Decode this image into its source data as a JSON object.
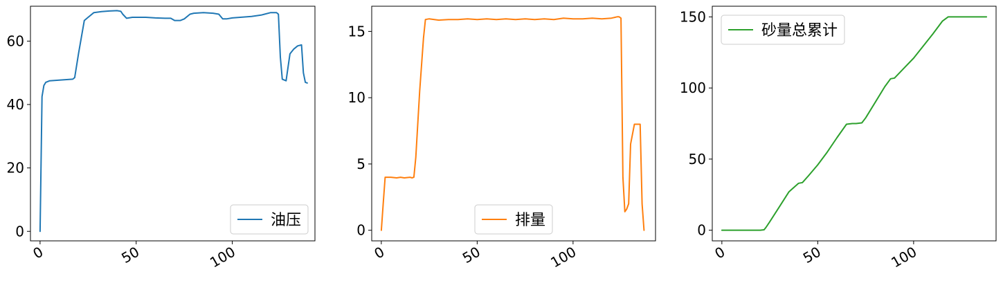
{
  "chart_data": [
    {
      "type": "line",
      "xlim": [
        -5,
        143
      ],
      "ylim": [
        -3,
        71
      ],
      "xticks": [
        0,
        50,
        100
      ],
      "yticks": [
        0,
        20,
        40,
        60
      ],
      "legend": "lower-right",
      "series": [
        {
          "name": "油压",
          "color": "#1f77b4",
          "x": [
            0,
            1,
            2,
            3,
            5,
            10,
            17,
            18,
            20,
            23,
            25,
            28,
            32,
            36,
            40,
            42,
            43,
            45,
            48,
            55,
            60,
            65,
            68,
            70,
            73,
            75,
            78,
            80,
            85,
            90,
            93,
            95,
            97,
            100,
            110,
            115,
            120,
            123,
            124,
            125,
            126,
            128,
            130,
            132,
            134,
            136,
            137,
            138,
            139
          ],
          "y": [
            0,
            42.5,
            46,
            47,
            47.5,
            47.7,
            48,
            48.5,
            56,
            66.5,
            67.5,
            69,
            69.3,
            69.5,
            69.6,
            69.4,
            68.5,
            67.2,
            67.5,
            67.5,
            67.3,
            67.2,
            67.2,
            66.5,
            66.5,
            67,
            68.5,
            68.8,
            69,
            68.8,
            68.5,
            67,
            67,
            67.3,
            67.8,
            68.2,
            69,
            69,
            68.5,
            55,
            48,
            47.5,
            56,
            57.5,
            58.5,
            58.8,
            50,
            47,
            46.8
          ]
        }
      ]
    },
    {
      "type": "line",
      "xlim": [
        -5,
        143
      ],
      "ylim": [
        -0.8,
        16.9
      ],
      "xticks": [
        0,
        50,
        100
      ],
      "yticks": [
        0,
        5,
        10,
        15
      ],
      "legend": "lower-center",
      "series": [
        {
          "name": "排量",
          "color": "#ff7f0e",
          "x": [
            0,
            1,
            2,
            5,
            8,
            10,
            12,
            15,
            16,
            17,
            18,
            20,
            22,
            23,
            25,
            30,
            35,
            40,
            45,
            50,
            55,
            60,
            65,
            70,
            75,
            80,
            85,
            90,
            95,
            100,
            105,
            110,
            115,
            120,
            123,
            124,
            125,
            126,
            127,
            128,
            129,
            130,
            132,
            134,
            135,
            136,
            137
          ],
          "y": [
            0,
            2,
            4,
            4,
            3.95,
            4,
            3.95,
            4,
            3.95,
            4,
            5.5,
            10.5,
            14.5,
            15.9,
            15.95,
            15.85,
            15.9,
            15.9,
            15.95,
            15.9,
            15.95,
            15.9,
            15.95,
            15.9,
            15.95,
            15.9,
            15.95,
            15.9,
            16,
            15.95,
            15.95,
            16,
            15.95,
            16,
            16.1,
            16.1,
            16,
            4,
            1.4,
            1.6,
            2,
            6.5,
            8,
            8,
            8,
            2,
            0
          ]
        }
      ]
    },
    {
      "type": "line",
      "xlim": [
        -5,
        143
      ],
      "ylim": [
        -7.5,
        157.5
      ],
      "xticks": [
        0,
        50,
        100
      ],
      "yticks": [
        0,
        50,
        100,
        150
      ],
      "legend": "upper-left",
      "series": [
        {
          "name": "砂量总累计",
          "color": "#2ca02c",
          "x": [
            0,
            10,
            20,
            22,
            23,
            25,
            30,
            35,
            40,
            42,
            45,
            50,
            55,
            60,
            65,
            68,
            70,
            73,
            75,
            80,
            85,
            88,
            90,
            95,
            100,
            110,
            115,
            118,
            119,
            120,
            130,
            138
          ],
          "y": [
            0,
            0,
            0,
            0.3,
            2,
            6,
            16.5,
            27,
            33,
            33.5,
            38,
            46,
            55,
            65,
            74.5,
            75,
            75,
            75.5,
            79,
            90,
            101,
            106.5,
            107,
            114,
            121,
            138,
            147,
            150,
            150,
            150,
            150,
            150
          ]
        }
      ]
    }
  ]
}
